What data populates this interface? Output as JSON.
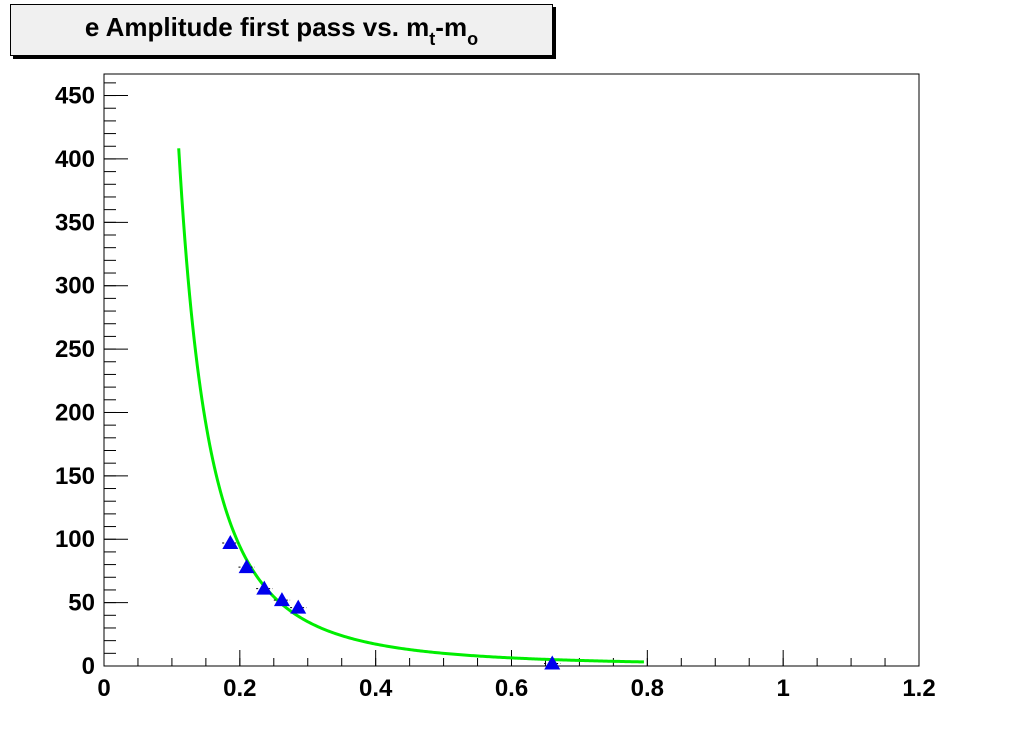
{
  "title": {
    "parts": [
      {
        "text": "e Amplitude first pass vs. m",
        "sub": false
      },
      {
        "text": "t",
        "sub": true
      },
      {
        "text": "-m",
        "sub": false
      },
      {
        "text": "o",
        "sub": true
      }
    ]
  },
  "chart_data": {
    "type": "scatter",
    "title": "e Amplitude first pass vs. m_t-m_o",
    "xlabel": "",
    "ylabel": "",
    "xlim": [
      0,
      1.2
    ],
    "ylim": [
      0,
      467
    ],
    "x_ticks": [
      0,
      0.2,
      0.4,
      0.6,
      0.8,
      1,
      1.2
    ],
    "x_tick_labels": [
      "0",
      "0.2",
      "0.4",
      "0.6",
      "0.8",
      "1",
      "1.2"
    ],
    "y_ticks": [
      0,
      50,
      100,
      150,
      200,
      250,
      300,
      350,
      400,
      450
    ],
    "y_tick_labels": [
      "0",
      "50",
      "100",
      "150",
      "200",
      "250",
      "300",
      "350",
      "400",
      "450"
    ],
    "grid": false,
    "legend": "none",
    "series": [
      {
        "kind": "markers",
        "marker": "triangle-up",
        "color": "#0000ee",
        "x": [
          0.186,
          0.21,
          0.236,
          0.262,
          0.286,
          0.66
        ],
        "y": [
          97,
          78,
          61,
          52,
          46,
          2
        ],
        "xerr": [
          0.012,
          0.012,
          0.012,
          0.012,
          0.012,
          0.012
        ]
      },
      {
        "kind": "fit-curve",
        "color": "#00ee00",
        "x_range": [
          0.11,
          0.795
        ],
        "model": "power",
        "a": 1.83,
        "b": -2.45
      }
    ]
  }
}
